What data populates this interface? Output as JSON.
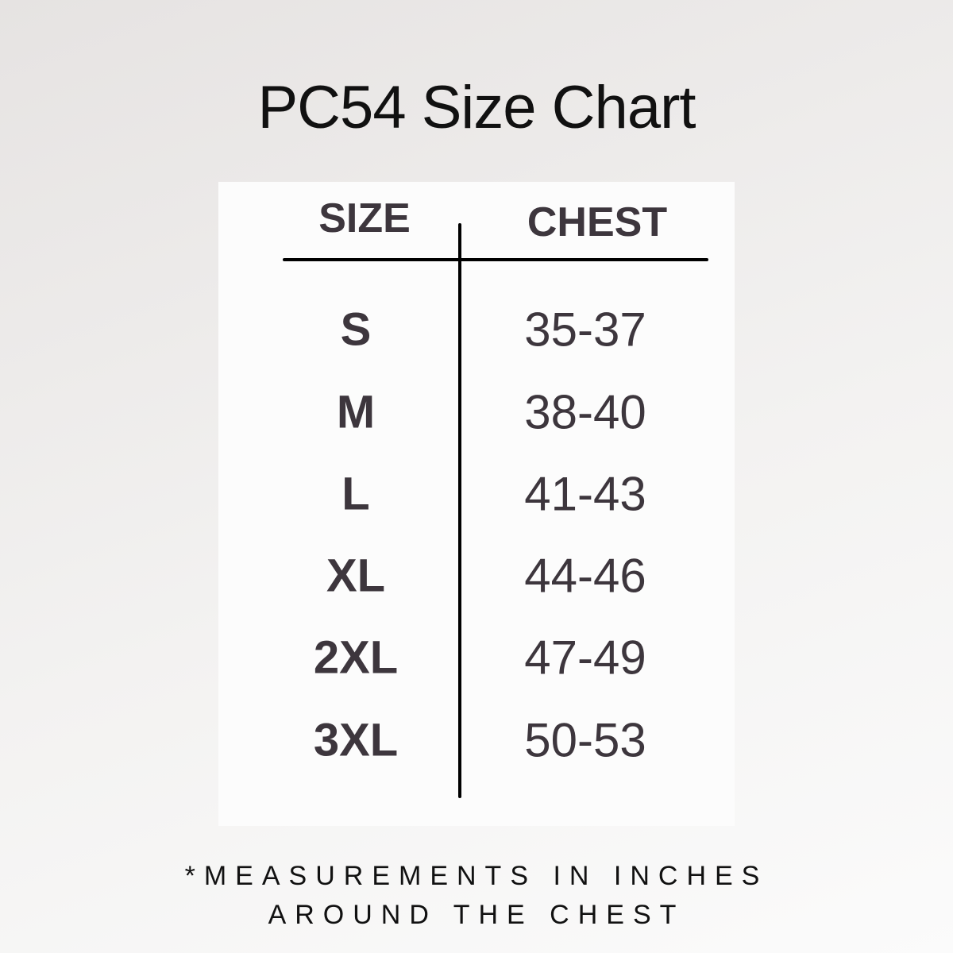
{
  "title": "PC54 Size Chart",
  "table": {
    "headers": [
      "SIZE",
      "CHEST"
    ],
    "rows": [
      {
        "size": "S",
        "chest": "35-37"
      },
      {
        "size": "M",
        "chest": "38-40"
      },
      {
        "size": "L",
        "chest": "41-43"
      },
      {
        "size": "XL",
        "chest": "44-46"
      },
      {
        "size": "2XL",
        "chest": "47-49"
      },
      {
        "size": "3XL",
        "chest": "50-53"
      }
    ]
  },
  "footnote": [
    "*MEASUREMENTS IN INCHES",
    "AROUND THE CHEST"
  ],
  "colors": {
    "text": "#3d363d",
    "lines": "#000000",
    "card": "#fcfcfc"
  }
}
